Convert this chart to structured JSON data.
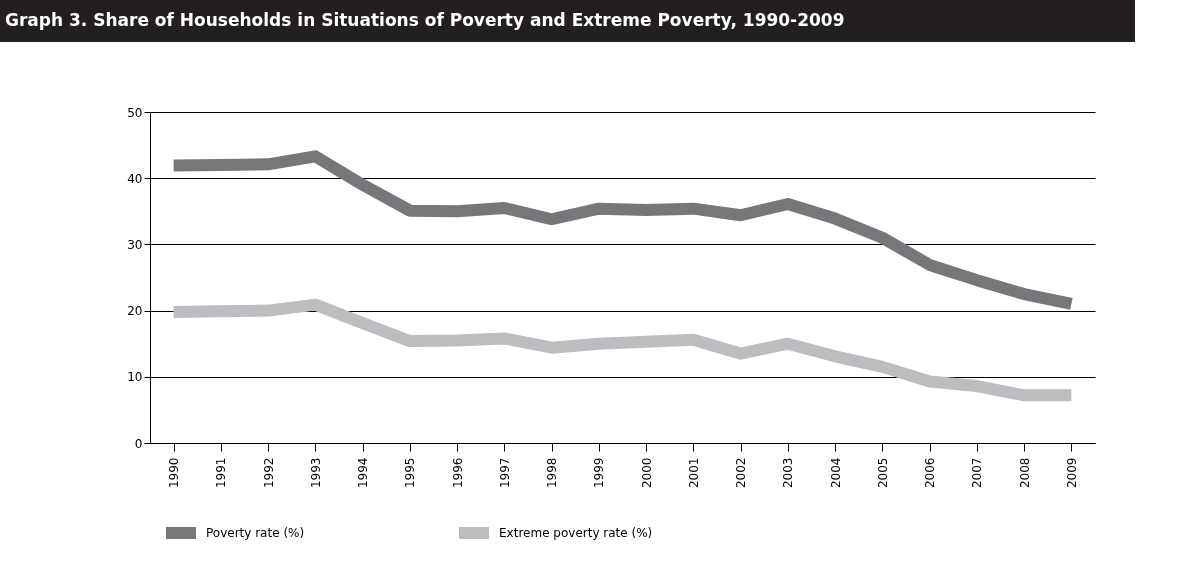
{
  "chart_data": {
    "type": "line",
    "title": "Graph 3. Share of Households in Situations of Poverty and Extreme Poverty, 1990-2009",
    "categories": [
      "1990",
      "1991",
      "1992",
      "1993",
      "1994",
      "1995",
      "1996",
      "1997",
      "1998",
      "1999",
      "2000",
      "2001",
      "2002",
      "2003",
      "2004",
      "2005",
      "2006",
      "2007",
      "2008",
      "2009"
    ],
    "series": [
      {
        "name": "Poverty rate (%)",
        "color": "#76777b",
        "values": [
          41.9,
          42.0,
          42.1,
          43.3,
          39.0,
          35.1,
          35.0,
          35.5,
          33.8,
          35.4,
          35.2,
          35.4,
          34.4,
          36.1,
          33.9,
          31.0,
          26.9,
          24.6,
          22.5,
          21.0
        ]
      },
      {
        "name": "Extreme poverty rate (%)",
        "color": "#bcbdc0",
        "values": [
          19.8,
          19.9,
          20.0,
          20.9,
          18.1,
          15.4,
          15.5,
          15.8,
          14.4,
          15.0,
          15.3,
          15.6,
          13.5,
          15.0,
          13.1,
          11.5,
          9.3,
          8.6,
          7.2,
          7.2
        ]
      }
    ],
    "ylim": [
      0,
      50
    ],
    "yticks": [
      0,
      10,
      20,
      30,
      40,
      50
    ],
    "grid": "y",
    "legend": "bottom left",
    "line_style": "solid",
    "marker": "none"
  }
}
